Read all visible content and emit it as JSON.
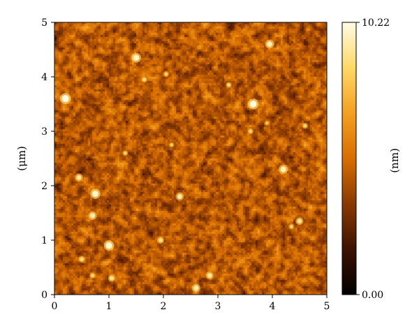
{
  "chart_data": {
    "type": "heatmap",
    "title": "",
    "xlabel": "",
    "ylabel": "(μm)",
    "xlim": [
      0,
      5
    ],
    "ylim": [
      0,
      5
    ],
    "x_ticks": [
      "0",
      "1",
      "2",
      "3",
      "4",
      "5"
    ],
    "y_ticks": [
      "0",
      "1",
      "2",
      "3",
      "4",
      "5"
    ],
    "grid": false,
    "colorbar": {
      "label": "(nm)",
      "min_label": "0.00",
      "max_label": "10.22",
      "min": 0.0,
      "max": 10.22,
      "colors": [
        "#000000",
        "#3d1200",
        "#8a3a00",
        "#d86e00",
        "#f4a020",
        "#ffd867",
        "#fffbe4"
      ]
    },
    "surface": {
      "mean_height": 4.4,
      "variation": 1.7,
      "features": [
        {
          "x": 0.2,
          "y": 3.6,
          "h": 10.2
        },
        {
          "x": 3.65,
          "y": 3.5,
          "h": 10.1
        },
        {
          "x": 1.5,
          "y": 4.35,
          "h": 9.8
        },
        {
          "x": 3.95,
          "y": 4.6,
          "h": 9.5
        },
        {
          "x": 4.2,
          "y": 2.3,
          "h": 9.6
        },
        {
          "x": 0.75,
          "y": 1.85,
          "h": 9.9
        },
        {
          "x": 2.3,
          "y": 1.8,
          "h": 9.3
        },
        {
          "x": 0.45,
          "y": 2.15,
          "h": 9.2
        },
        {
          "x": 1.0,
          "y": 0.9,
          "h": 10.0
        },
        {
          "x": 0.7,
          "y": 1.45,
          "h": 9.4
        },
        {
          "x": 0.5,
          "y": 0.65,
          "h": 8.8
        },
        {
          "x": 0.7,
          "y": 0.35,
          "h": 8.6
        },
        {
          "x": 1.05,
          "y": 0.3,
          "h": 9.0
        },
        {
          "x": 2.6,
          "y": 0.12,
          "h": 9.4
        },
        {
          "x": 2.85,
          "y": 0.35,
          "h": 9.2
        },
        {
          "x": 4.5,
          "y": 1.35,
          "h": 9.1
        },
        {
          "x": 4.35,
          "y": 1.25,
          "h": 8.5
        },
        {
          "x": 1.65,
          "y": 3.95,
          "h": 8.7
        },
        {
          "x": 3.2,
          "y": 3.85,
          "h": 8.6
        },
        {
          "x": 2.15,
          "y": 2.75,
          "h": 8.4
        },
        {
          "x": 3.6,
          "y": 3.0,
          "h": 8.6
        },
        {
          "x": 1.3,
          "y": 2.6,
          "h": 8.5
        },
        {
          "x": 3.9,
          "y": 3.15,
          "h": 8.3
        },
        {
          "x": 4.6,
          "y": 3.1,
          "h": 8.6
        },
        {
          "x": 1.95,
          "y": 1.0,
          "h": 8.9
        },
        {
          "x": 2.05,
          "y": 4.05,
          "h": 8.5
        }
      ]
    }
  }
}
